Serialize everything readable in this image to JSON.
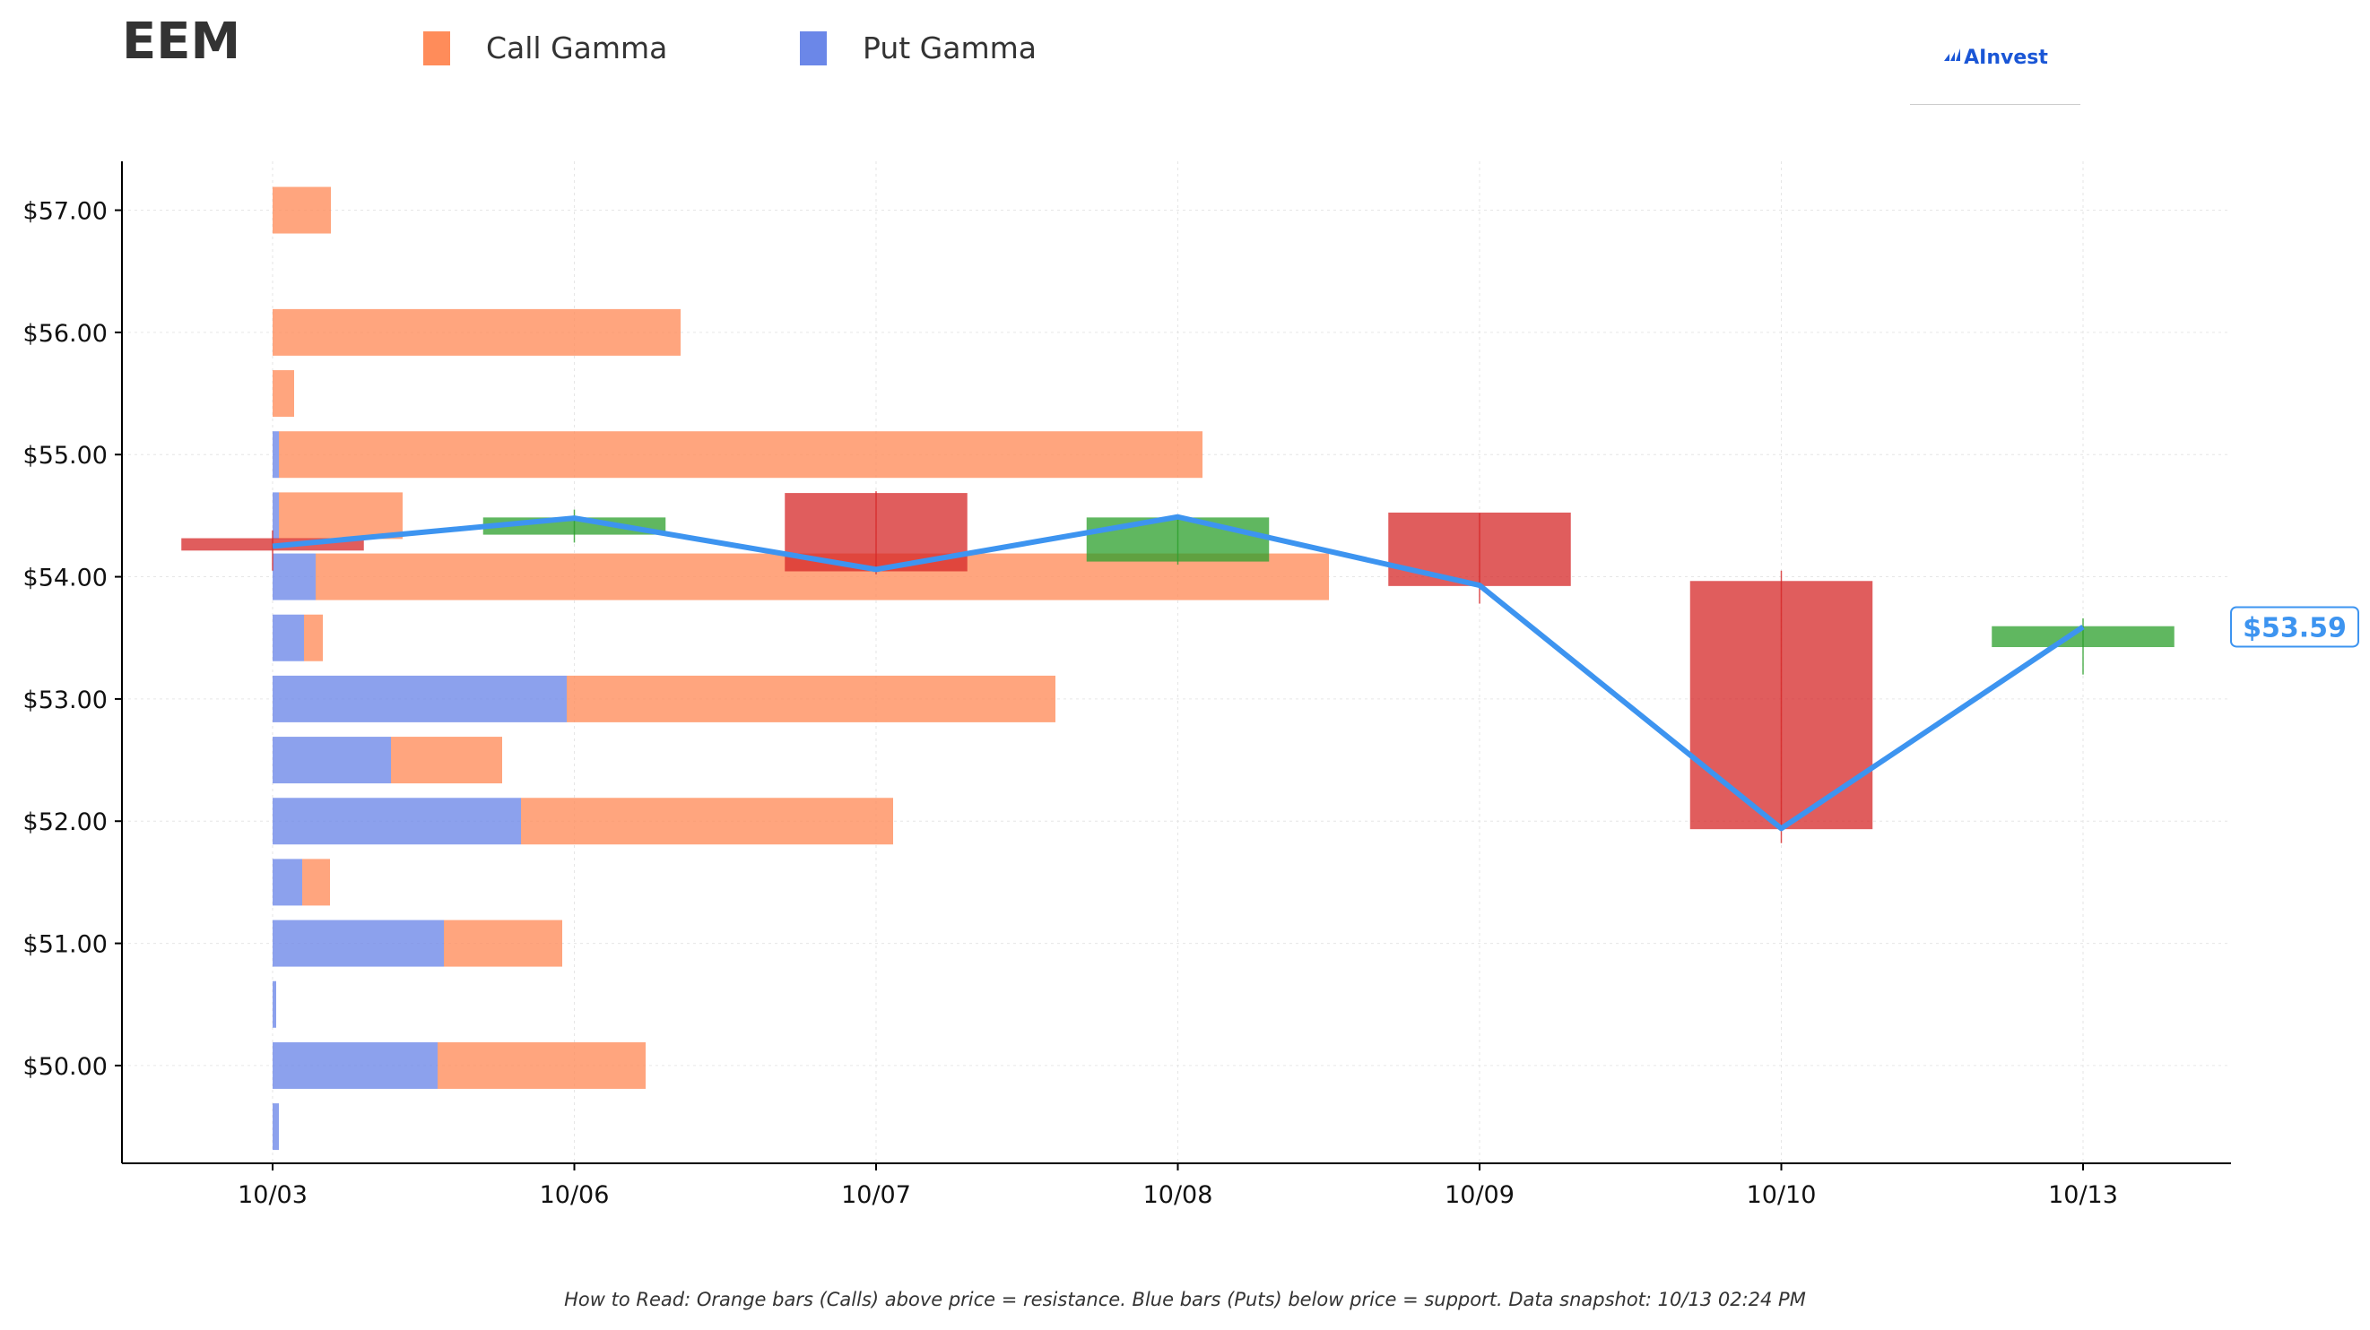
{
  "ticker": "EEM",
  "legend": {
    "call_label": "Call Gamma",
    "put_label": "Put Gamma",
    "call_color": "#ff8c5a",
    "put_color": "#6b87e8"
  },
  "logo": {
    "text": "AInvest",
    "icon": "ainvest-logo-icon"
  },
  "footnote": "How to Read: Orange bars (Calls) above price = resistance. Blue bars (Puts) below price = support. Data snapshot: 10/13 02:24 PM",
  "chart_data": {
    "type": "candlestick-with-gamma-bars",
    "title": "EEM",
    "xlabel": "",
    "ylabel": "",
    "x_categories": [
      "10/03",
      "10/06",
      "10/07",
      "10/08",
      "10/09",
      "10/10",
      "10/13"
    ],
    "ylim": [
      49.2,
      57.4
    ],
    "y_ticks": [
      50,
      51,
      52,
      53,
      54,
      55,
      56,
      57
    ],
    "y_tick_labels": [
      "$50.00",
      "$51.00",
      "$52.00",
      "$53.00",
      "$54.00",
      "$55.00",
      "$56.00",
      "$57.00"
    ],
    "grid": true,
    "candles": [
      {
        "date": "10/03",
        "open": 54.31,
        "close": 54.22,
        "high": 54.38,
        "low": 54.05
      },
      {
        "date": "10/06",
        "open": 54.35,
        "close": 54.48,
        "high": 54.55,
        "low": 54.28
      },
      {
        "date": "10/07",
        "open": 54.68,
        "close": 54.05,
        "high": 54.7,
        "low": 54.02
      },
      {
        "date": "10/08",
        "open": 54.13,
        "close": 54.48,
        "high": 54.5,
        "low": 54.1
      },
      {
        "date": "10/09",
        "open": 54.52,
        "close": 53.93,
        "high": 54.52,
        "low": 53.78
      },
      {
        "date": "10/10",
        "open": 53.96,
        "close": 51.94,
        "high": 54.05,
        "low": 51.82
      },
      {
        "date": "10/13",
        "open": 53.43,
        "close": 53.59,
        "high": 53.66,
        "low": 53.2
      }
    ],
    "close_line": {
      "color": "#3d94f0",
      "values": [
        54.25,
        54.48,
        54.06,
        54.49,
        53.93,
        51.94,
        53.59
      ]
    },
    "current_price_label": "$53.59",
    "gamma_bars": {
      "strikes": [
        57.0,
        56.0,
        55.5,
        55.0,
        54.5,
        54.0,
        53.5,
        53.0,
        52.5,
        52.0,
        51.5,
        51.0,
        50.5,
        50.0,
        49.5
      ],
      "call_gamma": [
        0.065,
        0.455,
        0.024,
        1.03,
        0.138,
        1.13,
        0.021,
        0.545,
        0.124,
        0.415,
        0.031,
        0.132,
        0.0,
        0.232,
        0.0
      ],
      "put_gamma": [
        0.0,
        0.0,
        0.0,
        0.007,
        0.007,
        0.048,
        0.035,
        0.328,
        0.132,
        0.277,
        0.033,
        0.191,
        0.004,
        0.184,
        0.007
      ]
    },
    "up_color": "#2ca02c",
    "down_color": "#d62728"
  }
}
